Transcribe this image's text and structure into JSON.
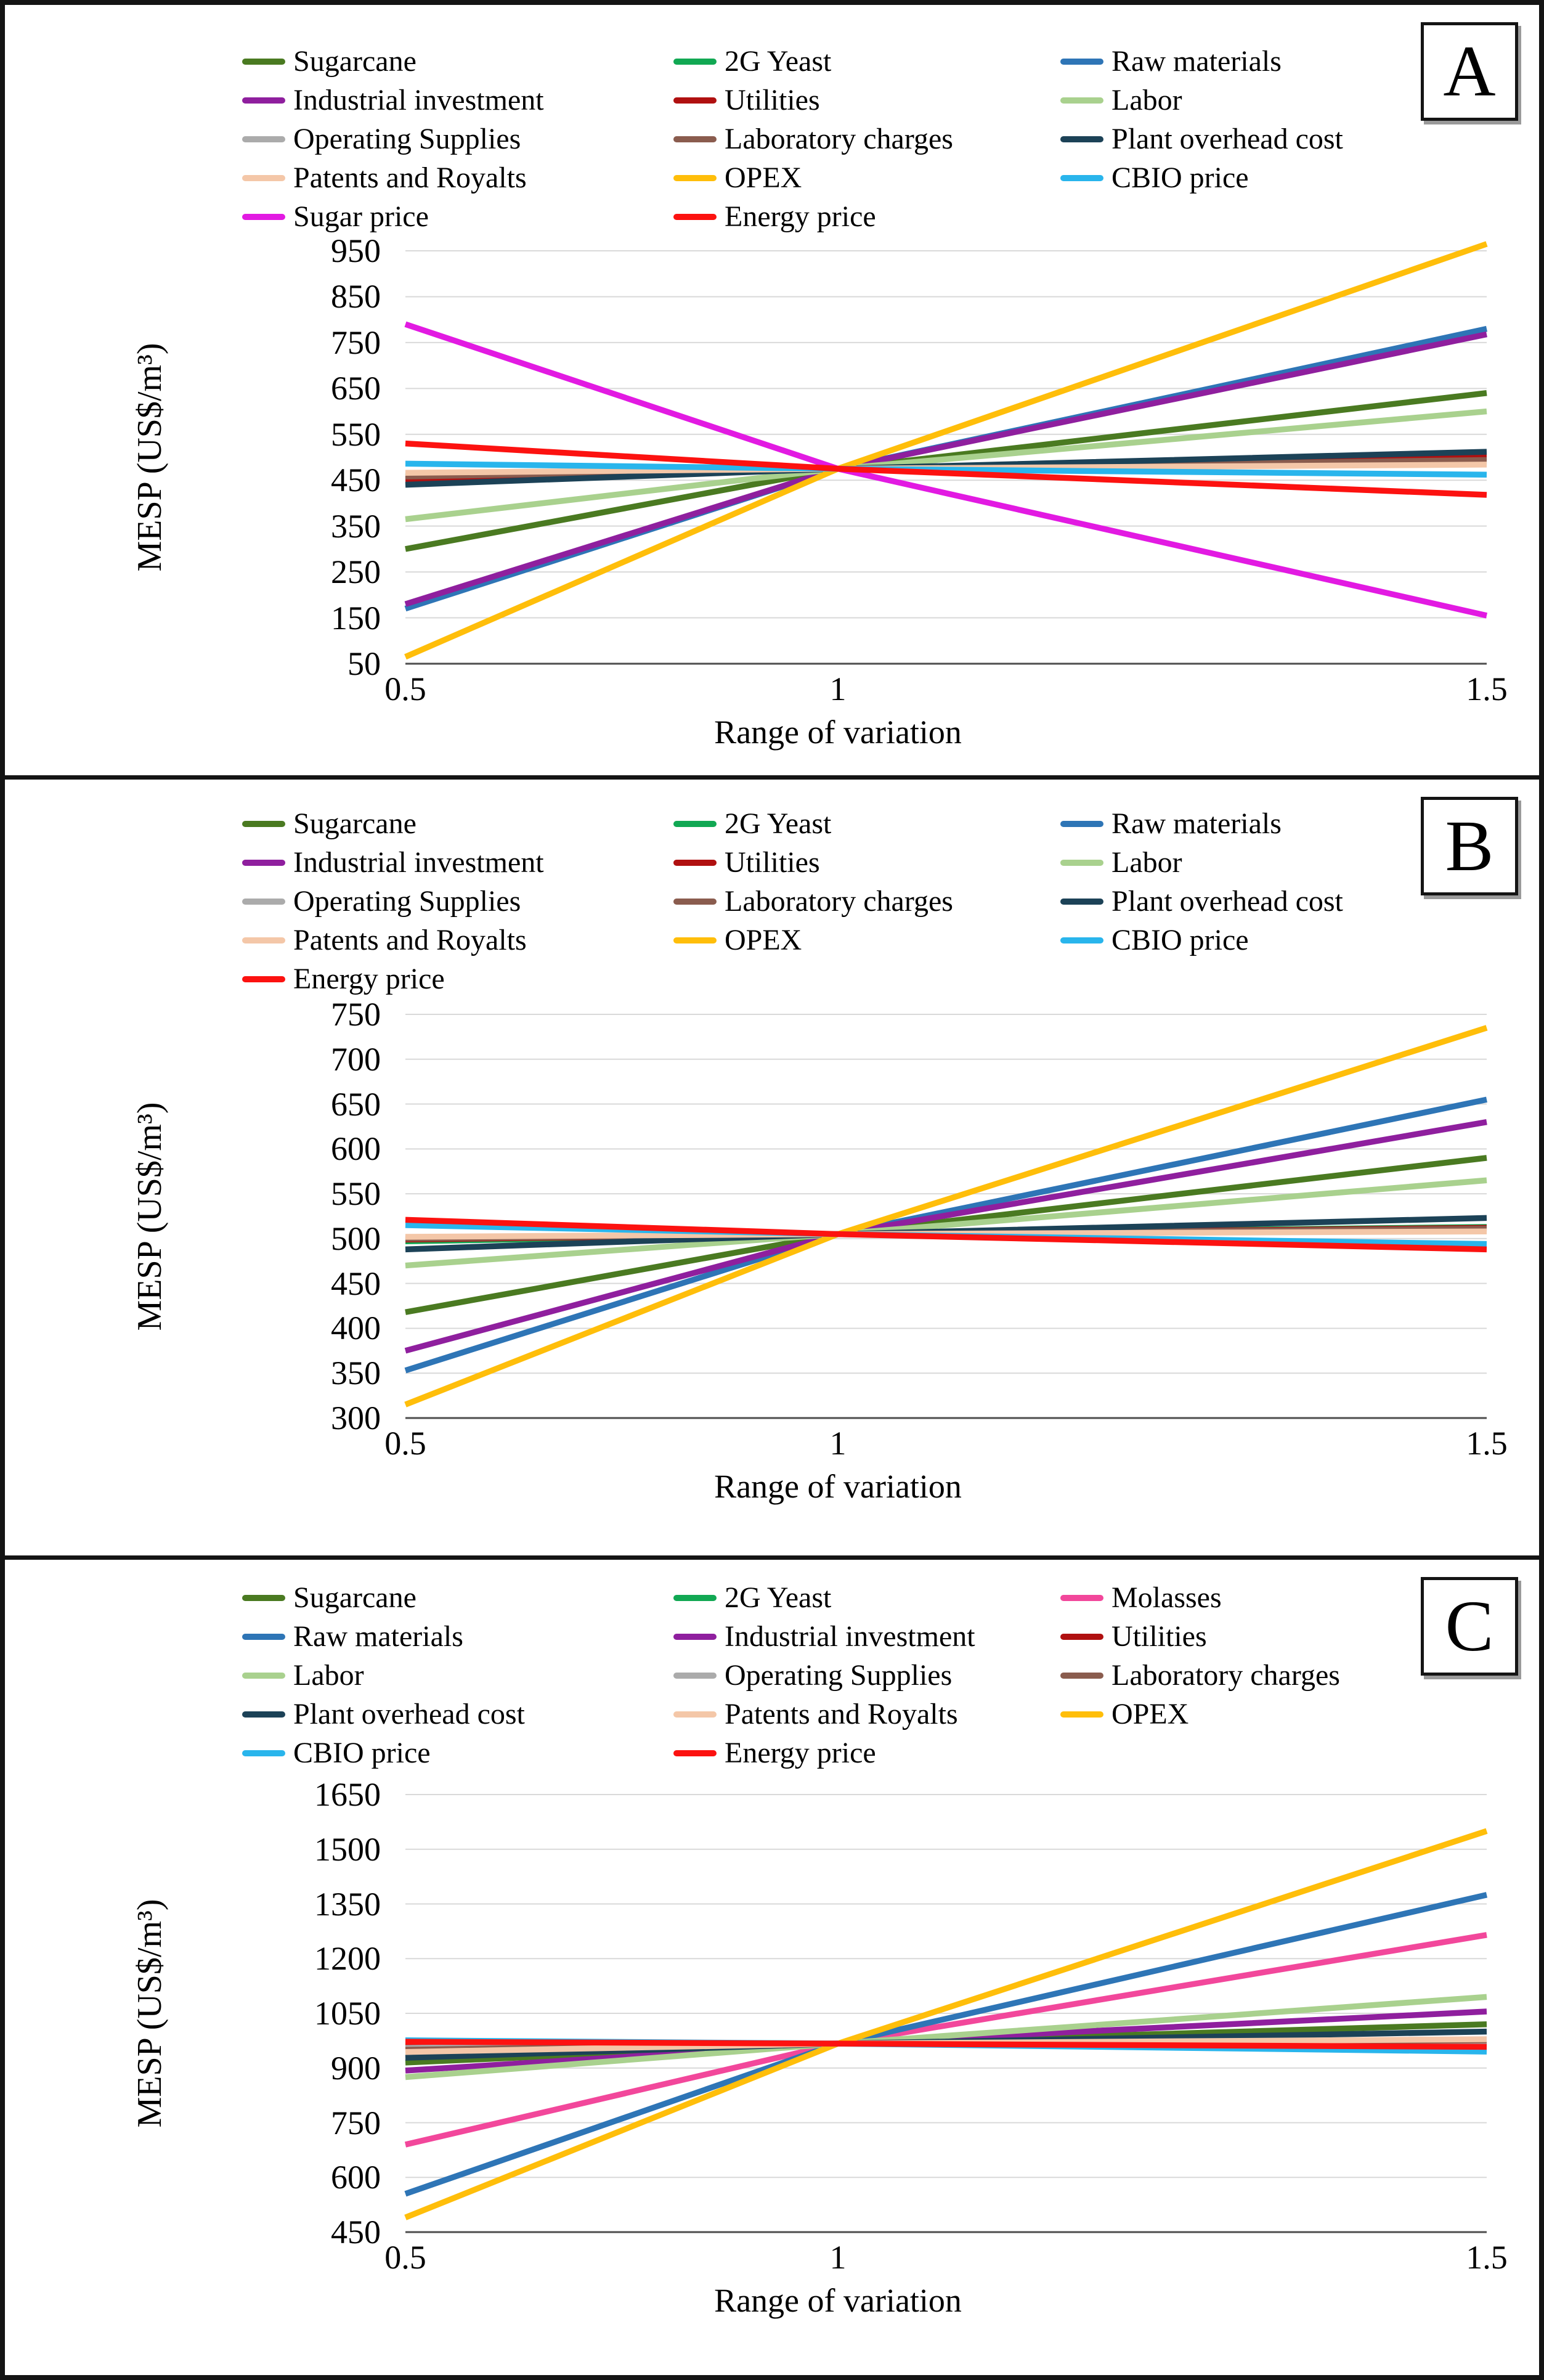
{
  "figure": {
    "xlabel": "Range of variation",
    "ylabel": "MESP (US$/m³)"
  },
  "chart_data": [
    {
      "panel": "A",
      "type": "line",
      "xlabel": "Range of variation",
      "ylabel": "MESP (US$/m³)",
      "x": [
        0.5,
        1,
        1.5
      ],
      "x_ticks": [
        {
          "label": "0.5",
          "pos_pct": 0
        },
        {
          "label": "1",
          "pos_pct": 40
        },
        {
          "label": "1.5",
          "pos_pct": 100
        }
      ],
      "yticks": [
        950,
        850,
        750,
        650,
        550,
        450,
        350,
        250,
        150,
        50
      ],
      "ylim": [
        50,
        950
      ],
      "grid": true,
      "legend_position": "top",
      "legend_columns": [
        [
          "Sugarcane",
          "Industrial investment",
          "Operating Supplies",
          "Patents and Royalts",
          "Sugar price"
        ],
        [
          "2G Yeast",
          "Utilities",
          "Laboratory charges",
          "OPEX",
          "Energy price"
        ],
        [
          "Raw materials",
          "Labor",
          "Plant overhead cost",
          "CBIO price"
        ]
      ],
      "series": [
        {
          "name": "Sugarcane",
          "color": "#4a7a21",
          "values": [
            300,
            475,
            640
          ]
        },
        {
          "name": "2G Yeast",
          "color": "#11a853",
          "values": [
            458,
            475,
            492
          ]
        },
        {
          "name": "Raw materials",
          "color": "#2e75b6",
          "values": [
            170,
            475,
            780
          ]
        },
        {
          "name": "Industrial investment",
          "color": "#8f1f9e",
          "values": [
            180,
            475,
            768
          ]
        },
        {
          "name": "Utilities",
          "color": "#b01010",
          "values": [
            452,
            475,
            500
          ]
        },
        {
          "name": "Labor",
          "color": "#a9d18e",
          "values": [
            365,
            475,
            600
          ]
        },
        {
          "name": "Operating Supplies",
          "color": "#ababab",
          "values": [
            462,
            475,
            488
          ]
        },
        {
          "name": "Laboratory charges",
          "color": "#8a5c4e",
          "values": [
            458,
            475,
            494
          ]
        },
        {
          "name": "Plant overhead cost",
          "color": "#1c4257",
          "values": [
            440,
            475,
            512
          ]
        },
        {
          "name": "Patents and Royalts",
          "color": "#f4c7a8",
          "values": [
            466,
            475,
            484
          ]
        },
        {
          "name": "OPEX",
          "color": "#ffbe0a",
          "values": [
            65,
            475,
            965
          ]
        },
        {
          "name": "CBIO price",
          "color": "#29b5ec",
          "values": [
            486,
            475,
            462
          ]
        },
        {
          "name": "Sugar price",
          "color": "#e21ae2",
          "values": [
            790,
            475,
            155
          ]
        },
        {
          "name": "Energy price",
          "color": "#fc1210",
          "values": [
            530,
            475,
            418
          ]
        }
      ]
    },
    {
      "panel": "B",
      "type": "line",
      "xlabel": "Range of variation",
      "ylabel": "MESP (US$/m³)",
      "x": [
        0.5,
        1,
        1.5
      ],
      "x_ticks": [
        {
          "label": "0.5",
          "pos_pct": 0
        },
        {
          "label": "1",
          "pos_pct": 40
        },
        {
          "label": "1.5",
          "pos_pct": 100
        }
      ],
      "yticks": [
        750,
        700,
        650,
        600,
        550,
        500,
        450,
        400,
        350,
        300
      ],
      "ylim": [
        300,
        750
      ],
      "grid": true,
      "legend_position": "top",
      "legend_columns": [
        [
          "Sugarcane",
          "Industrial investment",
          "Operating Supplies",
          "Patents and Royalts",
          "Energy price"
        ],
        [
          "2G Yeast",
          "Utilities",
          "Laboratory charges",
          "OPEX"
        ],
        [
          "Raw materials",
          "Labor",
          "Plant overhead cost",
          "CBIO price"
        ]
      ],
      "series": [
        {
          "name": "Sugarcane",
          "color": "#4a7a21",
          "values": [
            418,
            505,
            590
          ]
        },
        {
          "name": "2G Yeast",
          "color": "#11a853",
          "values": [
            497,
            505,
            513
          ]
        },
        {
          "name": "Raw materials",
          "color": "#2e75b6",
          "values": [
            353,
            505,
            655
          ]
        },
        {
          "name": "Industrial investment",
          "color": "#8f1f9e",
          "values": [
            375,
            505,
            630
          ]
        },
        {
          "name": "Utilities",
          "color": "#b01010",
          "values": [
            499,
            505,
            512
          ]
        },
        {
          "name": "Labor",
          "color": "#a9d18e",
          "values": [
            470,
            505,
            565
          ]
        },
        {
          "name": "Operating Supplies",
          "color": "#ababab",
          "values": [
            501,
            505,
            509
          ]
        },
        {
          "name": "Laboratory charges",
          "color": "#8a5c4e",
          "values": [
            500,
            505,
            511
          ]
        },
        {
          "name": "Plant overhead cost",
          "color": "#1c4257",
          "values": [
            488,
            505,
            523
          ]
        },
        {
          "name": "Patents and Royalts",
          "color": "#f4c7a8",
          "values": [
            502,
            505,
            508
          ]
        },
        {
          "name": "OPEX",
          "color": "#ffbe0a",
          "values": [
            315,
            505,
            735
          ]
        },
        {
          "name": "CBIO price",
          "color": "#29b5ec",
          "values": [
            515,
            505,
            494
          ]
        },
        {
          "name": "Energy price",
          "color": "#fc1210",
          "values": [
            521,
            505,
            488
          ]
        }
      ]
    },
    {
      "panel": "C",
      "type": "line",
      "xlabel": "Range of variation",
      "ylabel": "MESP (US$/m³)",
      "x": [
        0.5,
        1,
        1.5
      ],
      "x_ticks": [
        {
          "label": "0.5",
          "pos_pct": 0
        },
        {
          "label": "1",
          "pos_pct": 40
        },
        {
          "label": "1.5",
          "pos_pct": 100
        }
      ],
      "yticks": [
        1650,
        1500,
        1350,
        1200,
        1050,
        900,
        750,
        600,
        450
      ],
      "ylim": [
        450,
        1650
      ],
      "grid": true,
      "legend_position": "top",
      "legend_columns": [
        [
          "Sugarcane",
          "Raw materials",
          "Labor",
          "Plant overhead cost",
          "CBIO price"
        ],
        [
          "2G Yeast",
          "Industrial investment",
          "Operating Supplies",
          "Patents and Royalts",
          "Energy price"
        ],
        [
          "Molasses",
          "Utilities",
          "Laboratory charges",
          "OPEX"
        ]
      ],
      "series": [
        {
          "name": "Sugarcane",
          "color": "#4a7a21",
          "values": [
            915,
            967,
            1020
          ]
        },
        {
          "name": "2G Yeast",
          "color": "#11a853",
          "values": [
            960,
            967,
            973
          ]
        },
        {
          "name": "Molasses",
          "color": "#f2479b",
          "values": [
            690,
            967,
            1265
          ]
        },
        {
          "name": "Raw materials",
          "color": "#2e75b6",
          "values": [
            555,
            967,
            1375
          ]
        },
        {
          "name": "Industrial investment",
          "color": "#8f1f9e",
          "values": [
            893,
            967,
            1055
          ]
        },
        {
          "name": "Utilities",
          "color": "#b01010",
          "values": [
            958,
            967,
            970
          ]
        },
        {
          "name": "Labor",
          "color": "#a9d18e",
          "values": [
            875,
            967,
            1095
          ]
        },
        {
          "name": "Operating Supplies",
          "color": "#ababab",
          "values": [
            955,
            967,
            972
          ]
        },
        {
          "name": "Laboratory charges",
          "color": "#8a5c4e",
          "values": [
            950,
            967,
            976
          ]
        },
        {
          "name": "Plant overhead cost",
          "color": "#1c4257",
          "values": [
            928,
            967,
            1000
          ]
        },
        {
          "name": "Patents and Royalts",
          "color": "#f4c7a8",
          "values": [
            944,
            967,
            979
          ]
        },
        {
          "name": "OPEX",
          "color": "#ffbe0a",
          "values": [
            490,
            967,
            1550
          ]
        },
        {
          "name": "CBIO price",
          "color": "#29b5ec",
          "values": [
            976,
            967,
            945
          ]
        },
        {
          "name": "Energy price",
          "color": "#fc1210",
          "values": [
            972,
            967,
            958
          ]
        }
      ]
    }
  ]
}
